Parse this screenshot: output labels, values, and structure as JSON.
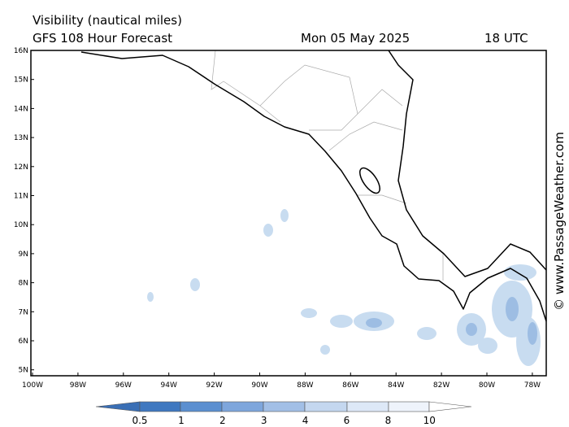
{
  "header": {
    "title": "Visibility (nautical miles)",
    "subtitle": "GFS 108 Hour Forecast",
    "date": "Mon 05 May 2025",
    "time": "18 UTC"
  },
  "map": {
    "lat_labels": [
      "16N",
      "15N",
      "14N",
      "13N",
      "12N",
      "11N",
      "10N",
      "9N",
      "8N",
      "7N",
      "6N",
      "5N"
    ],
    "lon_labels": [
      "100W",
      "98W",
      "96W",
      "94W",
      "92W",
      "90W",
      "88W",
      "86W",
      "84W",
      "82W",
      "80W",
      "78W"
    ]
  },
  "colorbar": {
    "labels": [
      "0.5",
      "1",
      "2",
      "3",
      "4",
      "6",
      "8",
      "10"
    ]
  },
  "credit": "© www.PassageWeather.com"
}
